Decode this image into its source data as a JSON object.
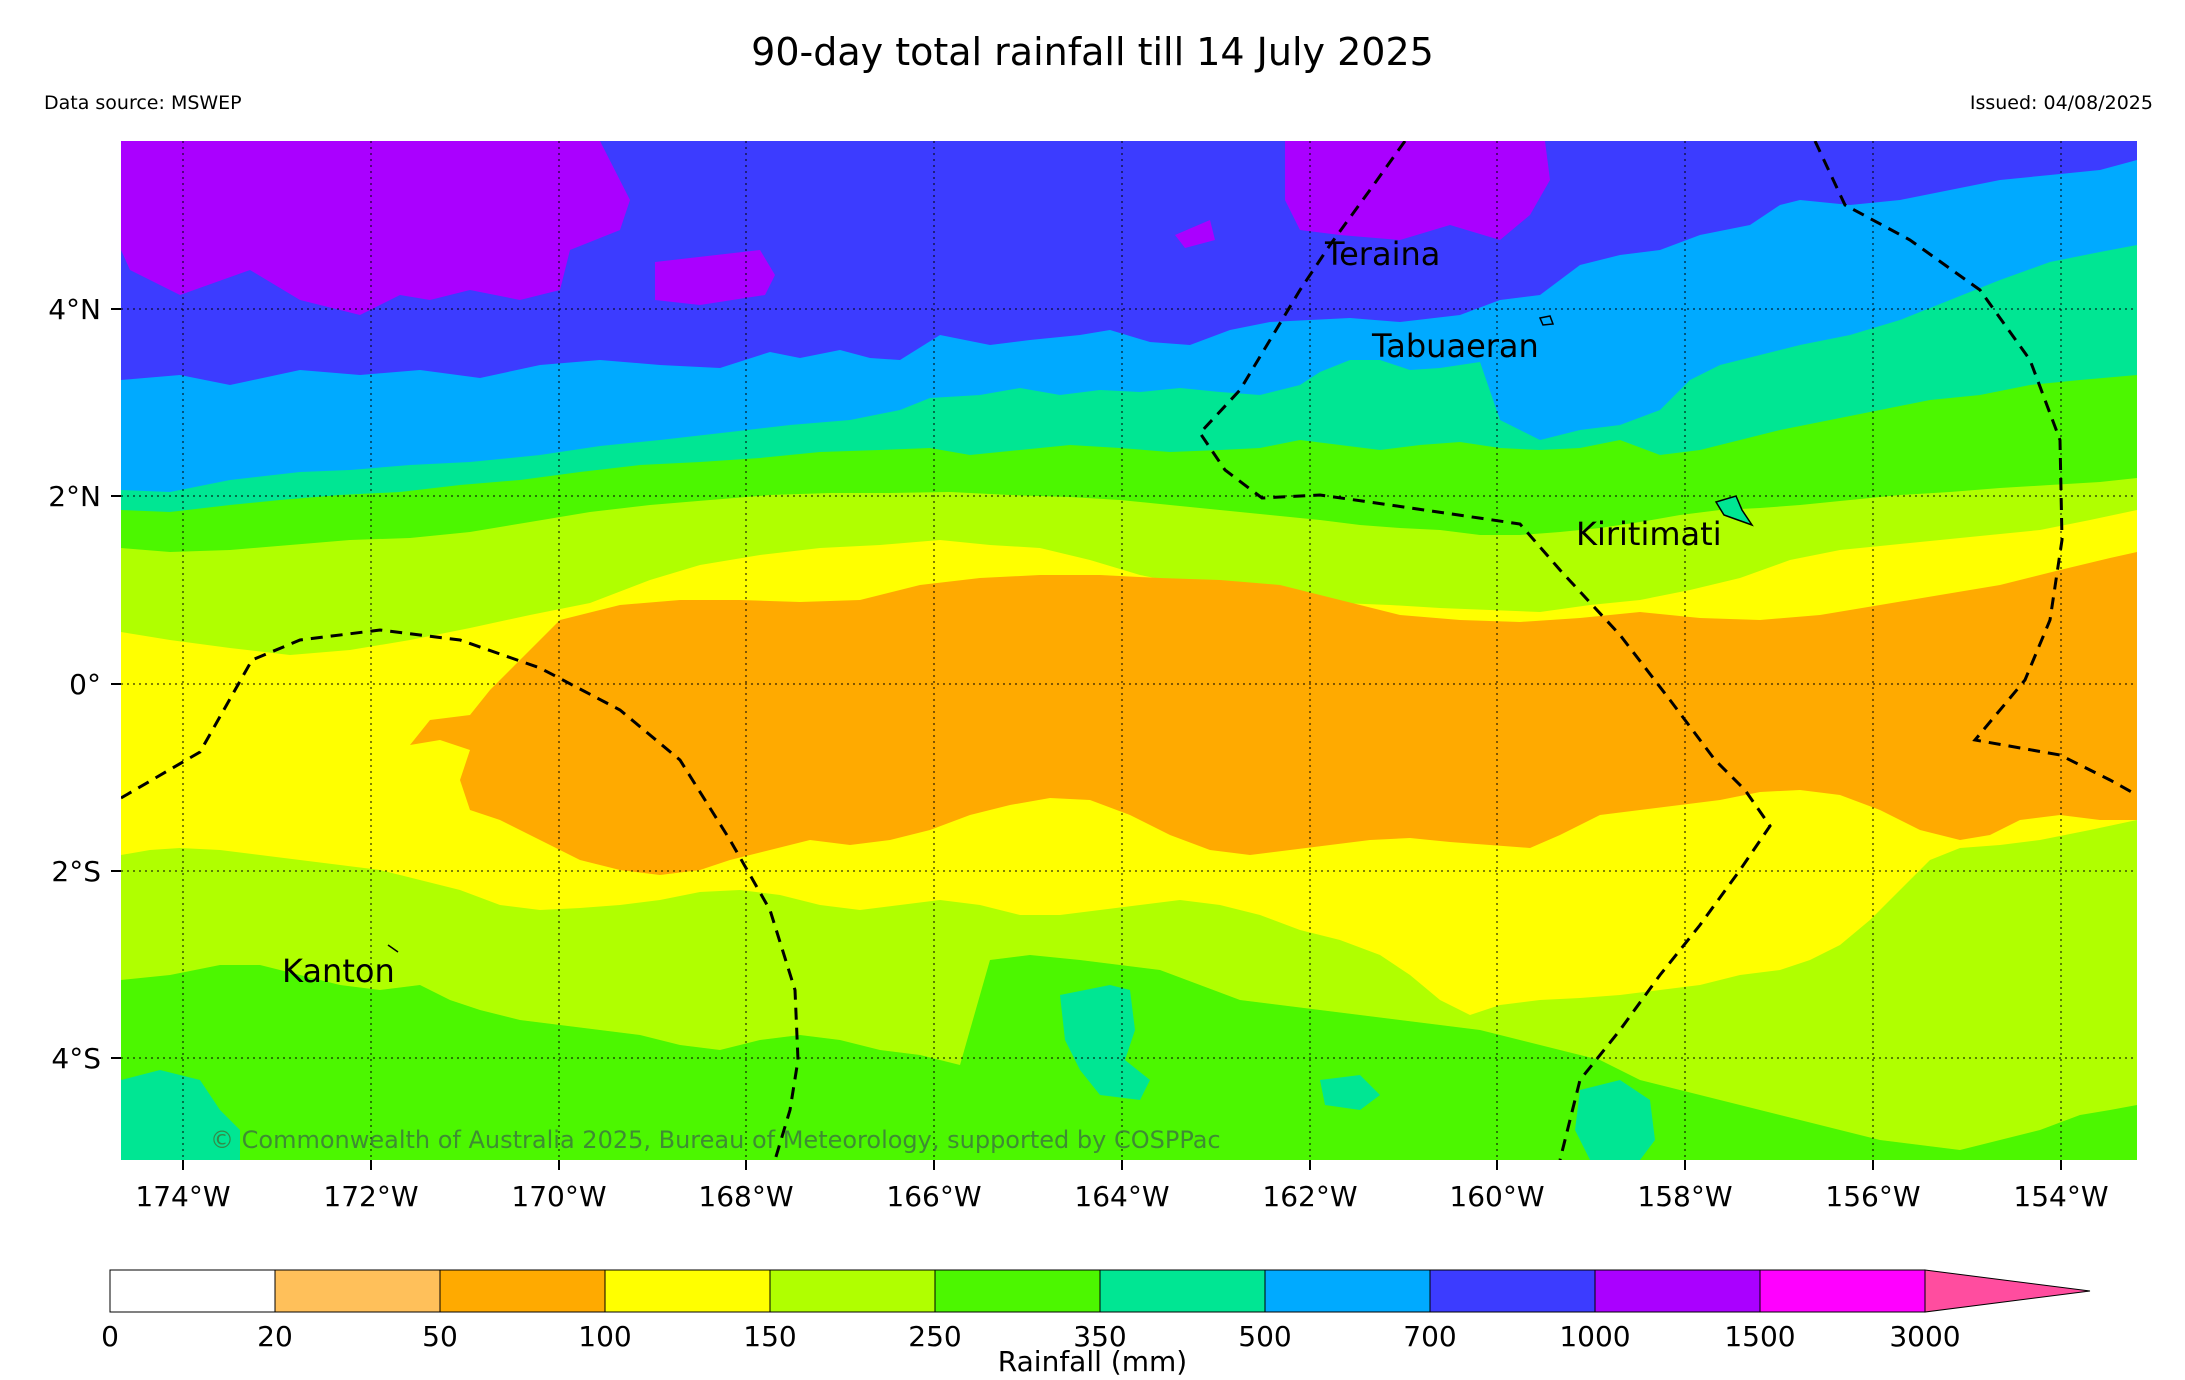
{
  "title": "90-day total rainfall till 14 July 2025",
  "source": "Data source: MSWEP",
  "issued": "Issued: 04/08/2025",
  "credit": "© Commonwealth of Australia 2025, Bureau of Meteorology, supported by COSPPac",
  "lon_labels": [
    "174°W",
    "172°W",
    "170°W",
    "168°W",
    "166°W",
    "164°W",
    "162°W",
    "160°W",
    "158°W",
    "156°W",
    "154°W"
  ],
  "lat_labels": [
    "4°N",
    "2°N",
    "0°",
    "2°S",
    "4°S"
  ],
  "places": [
    {
      "name": "Teraina"
    },
    {
      "name": "Tabuaeran"
    },
    {
      "name": "Kiritimati"
    },
    {
      "name": "Kanton"
    }
  ],
  "colorbar": {
    "label": "Rainfall (mm)",
    "ticks": [
      "0",
      "20",
      "50",
      "100",
      "150",
      "250",
      "350",
      "500",
      "700",
      "1000",
      "1500",
      "3000"
    ],
    "colors": [
      "#ffffff",
      "#ffc05a",
      "#ffaa00",
      "#ffff00",
      "#b0ff00",
      "#4cf700",
      "#00e693",
      "#00aaff",
      "#3c3cff",
      "#aa00ff",
      "#ff00ff",
      "#ff4d9f"
    ]
  }
}
